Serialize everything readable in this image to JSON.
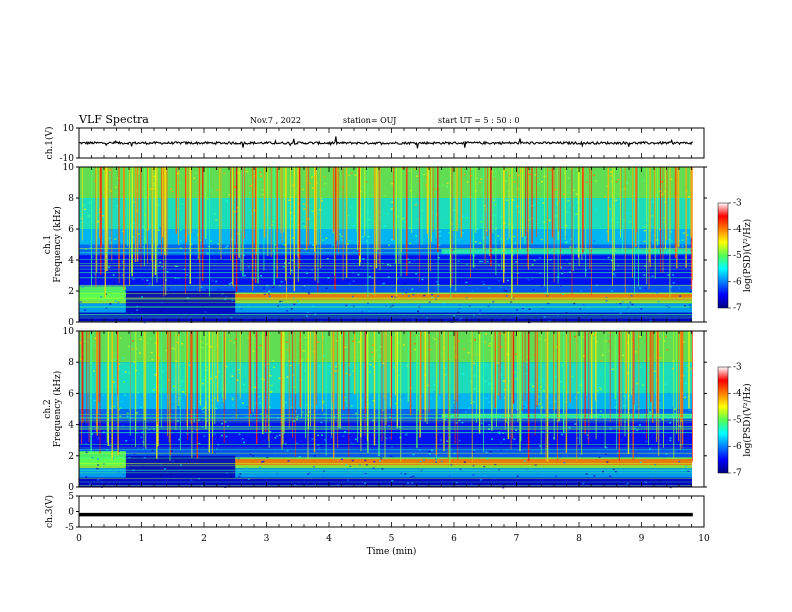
{
  "header": {
    "title": "VLF Spectra",
    "date": "Nov.7 , 2022",
    "station": "station= OUJ",
    "start": "start  UT =   5 : 50 : 0"
  },
  "chart_data": [
    {
      "type": "line",
      "panel": "ch1-waveform",
      "ylabel": "ch.1(V)",
      "ylim": [
        -10,
        10
      ],
      "yticks": [
        "10",
        "-10"
      ],
      "xlim": [
        0,
        10
      ],
      "baseline_v": 0
    },
    {
      "type": "heatmap",
      "panel": "ch1-spectrogram",
      "ylabel": "ch.1\nFrequency (kHz)",
      "ylabel_line1": "ch.1",
      "ylabel_line2": "Frequency (kHz)",
      "ylim": [
        0,
        10
      ],
      "yticks": [
        "0",
        "2",
        "4",
        "6",
        "8",
        "10"
      ],
      "xlim": [
        0,
        10
      ],
      "colorbar": {
        "ticks": [
          "-3",
          "-4",
          "-5",
          "-6",
          "-7"
        ],
        "range": [
          -7,
          -3
        ],
        "label": "log(PSD)(V²/Hz)"
      }
    },
    {
      "type": "heatmap",
      "panel": "ch2-spectrogram",
      "ylabel_line1": "ch.2",
      "ylabel_line2": "Frequency (kHz)",
      "ylim": [
        0,
        10
      ],
      "yticks": [
        "0",
        "2",
        "4",
        "6",
        "8",
        "10"
      ],
      "xlim": [
        0,
        10
      ],
      "colorbar": {
        "ticks": [
          "-3",
          "-4",
          "-5",
          "-6",
          "-7"
        ],
        "range": [
          -7,
          -3
        ],
        "label": "log(PSD)(V²/Hz)"
      }
    },
    {
      "type": "line",
      "panel": "ch3-waveform",
      "ylabel": "ch.3(V)",
      "ylim": [
        -5,
        5
      ],
      "yticks": [
        "5",
        "0",
        "-5"
      ],
      "xlim": [
        0,
        10
      ],
      "baseline_v": -1
    }
  ],
  "xaxis": {
    "label": "Time  (min)",
    "ticks": [
      "0",
      "1",
      "2",
      "3",
      "4",
      "5",
      "6",
      "7",
      "8",
      "9",
      "10"
    ]
  }
}
